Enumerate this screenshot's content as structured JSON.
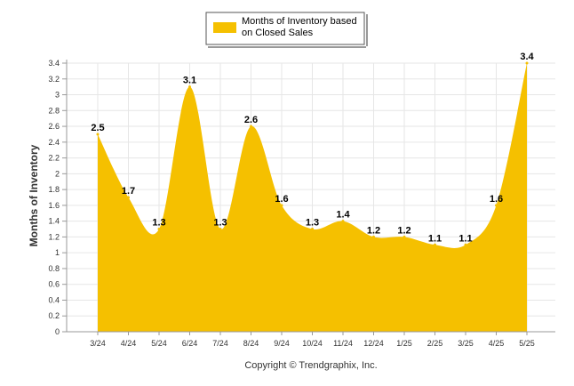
{
  "chart_data": {
    "type": "area",
    "legend": "Months of Inventory based on Closed Sales",
    "legend_lines": [
      "Months of Inventory based",
      "on Closed Sales"
    ],
    "legend_placement": "top-center",
    "ylabel": "Months of Inventory",
    "ylim": [
      0,
      3.4
    ],
    "yticks": [
      "0",
      "0.2",
      "0.4",
      "0.6",
      "0.8",
      "1",
      "1.2",
      "1.4",
      "1.6",
      "1.8",
      "2",
      "2.2",
      "2.4",
      "2.6",
      "2.8",
      "3",
      "3.2",
      "3.4"
    ],
    "categories": [
      "3/24",
      "4/24",
      "5/24",
      "6/24",
      "7/24",
      "8/24",
      "9/24",
      "10/24",
      "11/24",
      "12/24",
      "1/25",
      "2/25",
      "3/25",
      "4/25",
      "5/25"
    ],
    "values": [
      2.5,
      1.7,
      1.3,
      3.1,
      1.3,
      2.6,
      1.6,
      1.3,
      1.4,
      1.2,
      1.2,
      1.1,
      1.1,
      1.6,
      3.4
    ],
    "grid": true,
    "color": "#f5c000"
  },
  "footer": "Copyright © Trendgraphix, Inc."
}
